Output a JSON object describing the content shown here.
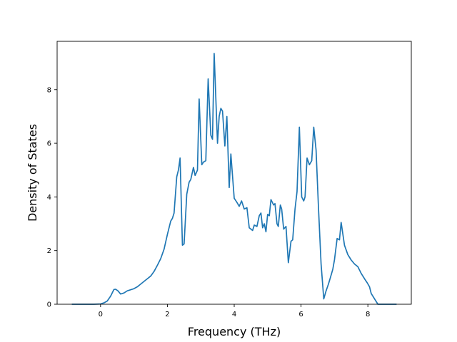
{
  "chart_data": {
    "type": "line",
    "title": "",
    "xlabel": "Frequency (THz)",
    "ylabel": "Density of States",
    "xlim": [
      -1.3,
      9.3
    ],
    "ylim": [
      0,
      9.8
    ],
    "xticks": [
      0,
      2,
      4,
      6,
      8
    ],
    "yticks": [
      0,
      2,
      4,
      6,
      8
    ],
    "xtick_labels": [
      "0",
      "2",
      "4",
      "6",
      "8"
    ],
    "ytick_labels": [
      "0",
      "2",
      "4",
      "6",
      "8"
    ],
    "grid": false,
    "legend": "none",
    "color": "#1f77b4",
    "x": [
      -0.85,
      -0.5,
      -0.2,
      0.0,
      0.1,
      0.2,
      0.3,
      0.4,
      0.45,
      0.52,
      0.6,
      0.7,
      0.8,
      0.9,
      1.0,
      1.1,
      1.2,
      1.3,
      1.4,
      1.5,
      1.6,
      1.7,
      1.8,
      1.9,
      2.0,
      2.1,
      2.15,
      2.2,
      2.28,
      2.33,
      2.38,
      2.45,
      2.5,
      2.58,
      2.65,
      2.7,
      2.78,
      2.83,
      2.9,
      2.95,
      3.03,
      3.08,
      3.15,
      3.22,
      3.3,
      3.35,
      3.4,
      3.5,
      3.55,
      3.6,
      3.65,
      3.72,
      3.78,
      3.85,
      3.9,
      4.0,
      4.08,
      4.15,
      4.22,
      4.3,
      4.38,
      4.45,
      4.55,
      4.6,
      4.68,
      4.75,
      4.8,
      4.85,
      4.9,
      4.95,
      5.0,
      5.05,
      5.1,
      5.18,
      5.22,
      5.28,
      5.32,
      5.38,
      5.42,
      5.48,
      5.55,
      5.62,
      5.7,
      5.75,
      5.82,
      5.88,
      5.95,
      6.02,
      6.08,
      6.12,
      6.18,
      6.25,
      6.32,
      6.38,
      6.45,
      6.52,
      6.6,
      6.68,
      6.75,
      6.82,
      6.88,
      6.95,
      7.0,
      7.08,
      7.15,
      7.2,
      7.3,
      7.4,
      7.5,
      7.6,
      7.7,
      7.8,
      7.9,
      7.98,
      8.05,
      8.1,
      8.3,
      8.85
    ],
    "y": [
      0.0,
      0.0,
      0.0,
      0.01,
      0.05,
      0.12,
      0.3,
      0.55,
      0.56,
      0.5,
      0.38,
      0.42,
      0.5,
      0.54,
      0.58,
      0.65,
      0.75,
      0.85,
      0.95,
      1.05,
      1.22,
      1.45,
      1.7,
      2.05,
      2.6,
      3.1,
      3.2,
      3.4,
      4.75,
      5.0,
      5.45,
      2.2,
      2.25,
      4.1,
      4.55,
      4.65,
      5.1,
      4.8,
      5.0,
      7.65,
      5.2,
      5.3,
      5.35,
      8.4,
      6.3,
      6.15,
      9.35,
      6.0,
      7.0,
      7.3,
      7.2,
      5.9,
      7.0,
      4.35,
      5.6,
      3.95,
      3.8,
      3.65,
      3.85,
      3.55,
      3.6,
      2.85,
      2.75,
      2.95,
      2.9,
      3.3,
      3.4,
      2.85,
      3.0,
      2.7,
      3.35,
      3.3,
      3.9,
      3.7,
      3.75,
      3.0,
      2.9,
      3.7,
      3.55,
      2.8,
      2.9,
      1.55,
      2.35,
      2.4,
      3.55,
      4.2,
      6.6,
      4.0,
      3.85,
      4.0,
      5.45,
      5.2,
      5.35,
      6.6,
      5.75,
      3.65,
      1.5,
      0.2,
      0.5,
      0.75,
      1.0,
      1.3,
      1.65,
      2.45,
      2.4,
      3.05,
      2.2,
      1.85,
      1.65,
      1.5,
      1.4,
      1.15,
      0.95,
      0.8,
      0.65,
      0.4,
      0.0,
      0.0
    ]
  }
}
